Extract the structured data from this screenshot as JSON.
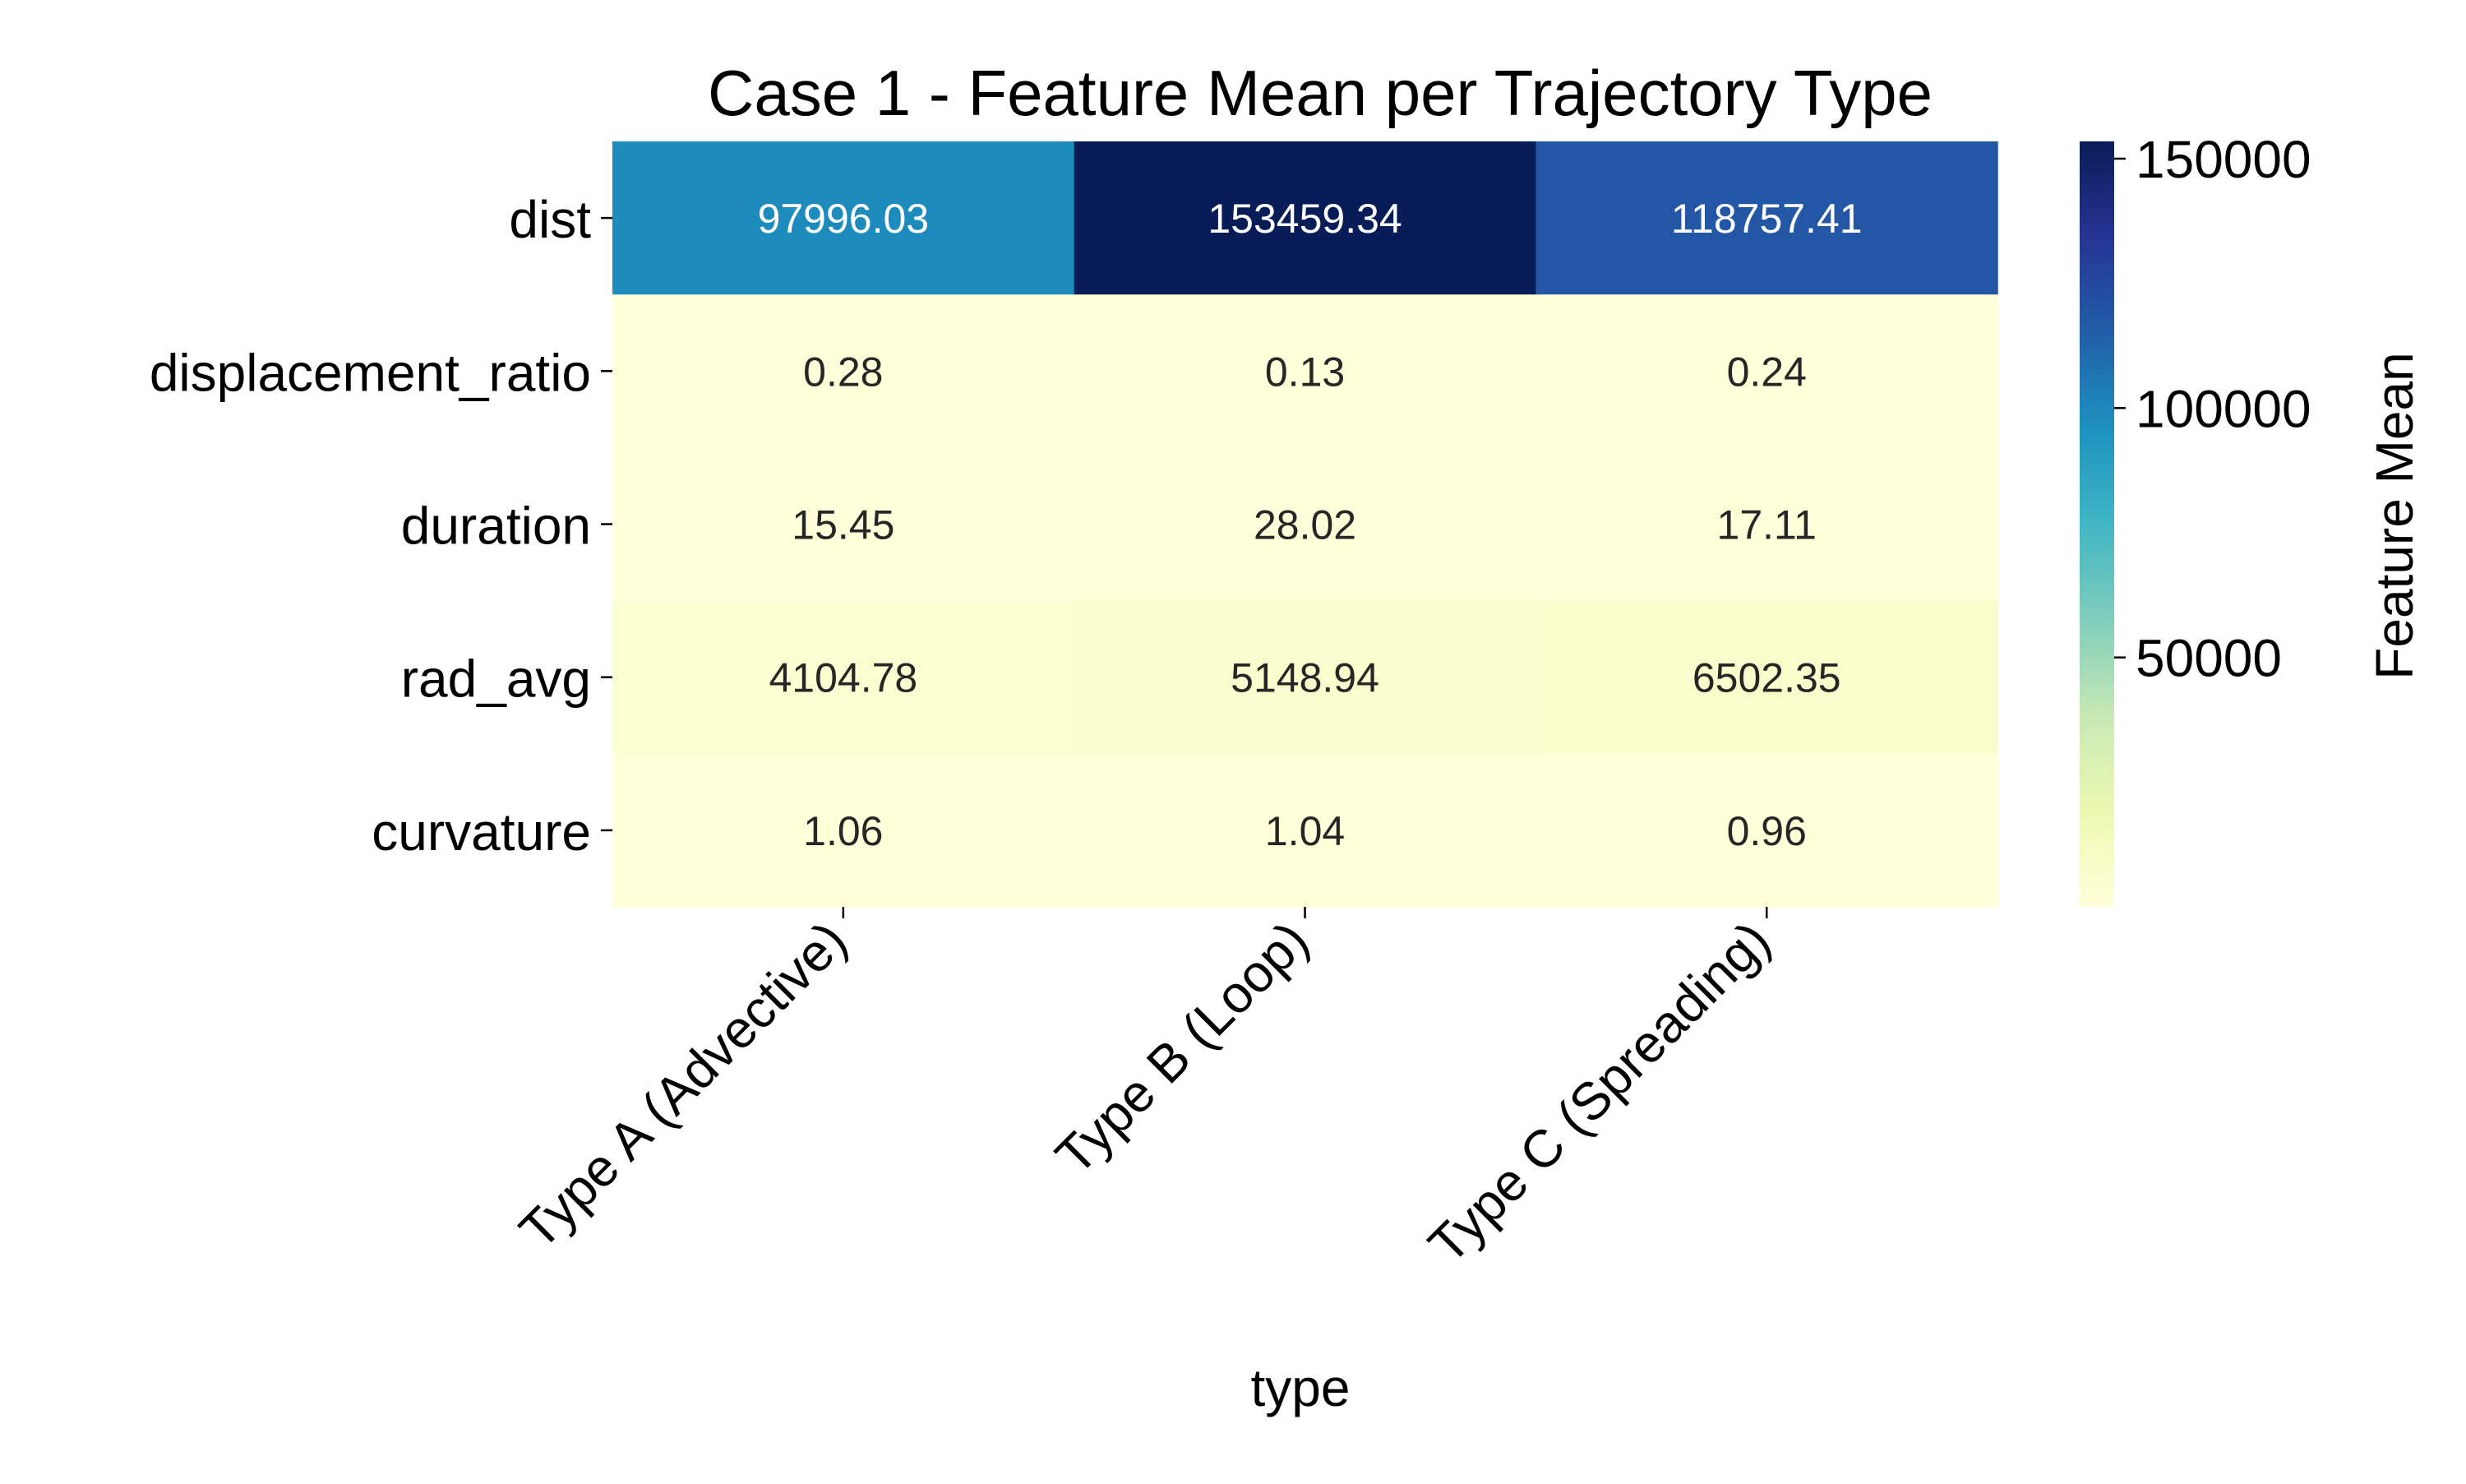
{
  "chart_data": {
    "type": "heatmap",
    "title": "Case 1 - Feature Mean per Trajectory Type",
    "xlabel": "type",
    "ylabel": "",
    "x_categories": [
      "Type A (Advective)",
      "Type B (Loop)",
      "Type C (Spreading)"
    ],
    "y_categories": [
      "dist",
      "displacement_ratio",
      "duration",
      "rad_avg",
      "curvature"
    ],
    "values": [
      [
        97996.03,
        153459.34,
        118757.41
      ],
      [
        0.28,
        0.13,
        0.24
      ],
      [
        15.45,
        28.02,
        17.11
      ],
      [
        4104.78,
        5148.94,
        6502.35
      ],
      [
        1.06,
        1.04,
        0.96
      ]
    ],
    "cell_labels": [
      [
        "97996.03",
        "153459.34",
        "118757.41"
      ],
      [
        "0.28",
        "0.13",
        "0.24"
      ],
      [
        "15.45",
        "28.02",
        "17.11"
      ],
      [
        "4104.78",
        "5148.94",
        "6502.35"
      ],
      [
        "1.06",
        "1.04",
        "0.96"
      ]
    ],
    "colorbar": {
      "label": "Feature Mean",
      "colormap": "YlGnBu",
      "range": [
        0.13,
        153459.34
      ],
      "ticks": [
        50000,
        100000,
        150000
      ],
      "tick_labels": [
        "50000",
        "100000",
        "150000"
      ]
    },
    "colors": {
      "light_text": "#ffffff",
      "dark_text": "#262626"
    }
  }
}
